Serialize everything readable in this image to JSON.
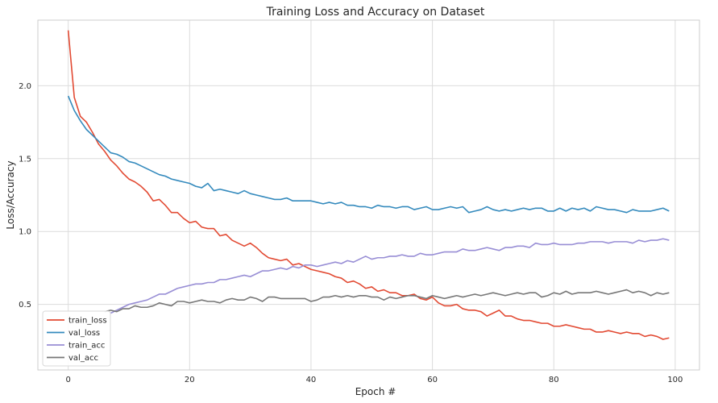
{
  "chart_data": {
    "type": "line",
    "title": "Training Loss and Accuracy on Dataset",
    "xlabel": "Epoch #",
    "ylabel": "Loss/Accuracy",
    "xlim": [
      -5,
      104
    ],
    "ylim": [
      0.05,
      2.45
    ],
    "xticks": [
      0,
      20,
      40,
      60,
      80,
      100
    ],
    "yticks": [
      0.5,
      1.0,
      1.5,
      2.0
    ],
    "xtick_labels": [
      "0",
      "20",
      "40",
      "60",
      "80",
      "100"
    ],
    "ytick_labels": [
      "0.5",
      "1.0",
      "1.5",
      "2.0"
    ],
    "grid": true,
    "legend": "bottom-left",
    "colors": {
      "train_loss": "#e24a33",
      "val_loss": "#348abd",
      "train_acc": "#988ed5",
      "val_acc": "#777777"
    },
    "series": [
      {
        "name": "train_loss",
        "color": "#e24a33",
        "values": [
          2.38,
          1.92,
          1.79,
          1.75,
          1.68,
          1.6,
          1.55,
          1.49,
          1.45,
          1.4,
          1.36,
          1.34,
          1.31,
          1.27,
          1.21,
          1.22,
          1.18,
          1.13,
          1.13,
          1.09,
          1.06,
          1.07,
          1.03,
          1.02,
          1.02,
          0.97,
          0.98,
          0.94,
          0.92,
          0.9,
          0.92,
          0.89,
          0.85,
          0.82,
          0.81,
          0.8,
          0.81,
          0.77,
          0.78,
          0.76,
          0.74,
          0.73,
          0.72,
          0.71,
          0.69,
          0.68,
          0.65,
          0.66,
          0.64,
          0.61,
          0.62,
          0.59,
          0.6,
          0.58,
          0.58,
          0.56,
          0.56,
          0.57,
          0.54,
          0.53,
          0.55,
          0.51,
          0.49,
          0.49,
          0.5,
          0.47,
          0.46,
          0.46,
          0.45,
          0.42,
          0.44,
          0.46,
          0.42,
          0.42,
          0.4,
          0.39,
          0.39,
          0.38,
          0.37,
          0.37,
          0.35,
          0.35,
          0.36,
          0.35,
          0.34,
          0.33,
          0.33,
          0.31,
          0.31,
          0.32,
          0.31,
          0.3,
          0.31,
          0.3,
          0.3,
          0.28,
          0.29,
          0.28,
          0.26,
          0.27
        ]
      },
      {
        "name": "val_loss",
        "color": "#348abd",
        "values": [
          1.93,
          1.83,
          1.76,
          1.7,
          1.66,
          1.62,
          1.58,
          1.54,
          1.53,
          1.51,
          1.48,
          1.47,
          1.45,
          1.43,
          1.41,
          1.39,
          1.38,
          1.36,
          1.35,
          1.34,
          1.33,
          1.31,
          1.3,
          1.33,
          1.28,
          1.29,
          1.28,
          1.27,
          1.26,
          1.28,
          1.26,
          1.25,
          1.24,
          1.23,
          1.22,
          1.22,
          1.23,
          1.21,
          1.21,
          1.21,
          1.21,
          1.2,
          1.19,
          1.2,
          1.19,
          1.2,
          1.18,
          1.18,
          1.17,
          1.17,
          1.16,
          1.18,
          1.17,
          1.17,
          1.16,
          1.17,
          1.17,
          1.15,
          1.16,
          1.17,
          1.15,
          1.15,
          1.16,
          1.17,
          1.16,
          1.17,
          1.13,
          1.14,
          1.15,
          1.17,
          1.15,
          1.14,
          1.15,
          1.14,
          1.15,
          1.16,
          1.15,
          1.16,
          1.16,
          1.14,
          1.14,
          1.16,
          1.14,
          1.16,
          1.15,
          1.16,
          1.14,
          1.17,
          1.16,
          1.15,
          1.15,
          1.14,
          1.13,
          1.15,
          1.14,
          1.14,
          1.14,
          1.15,
          1.16,
          1.14
        ]
      },
      {
        "name": "train_acc",
        "color": "#988ed5",
        "values": [
          null,
          null,
          null,
          null,
          null,
          null,
          null,
          0.44,
          0.46,
          0.48,
          0.5,
          0.51,
          0.52,
          0.53,
          0.55,
          0.57,
          0.57,
          0.59,
          0.61,
          0.62,
          0.63,
          0.64,
          0.64,
          0.65,
          0.65,
          0.67,
          0.67,
          0.68,
          0.69,
          0.7,
          0.69,
          0.71,
          0.73,
          0.73,
          0.74,
          0.75,
          0.74,
          0.76,
          0.75,
          0.77,
          0.77,
          0.76,
          0.77,
          0.78,
          0.79,
          0.78,
          0.8,
          0.79,
          0.81,
          0.83,
          0.81,
          0.82,
          0.82,
          0.83,
          0.83,
          0.84,
          0.83,
          0.83,
          0.85,
          0.84,
          0.84,
          0.85,
          0.86,
          0.86,
          0.86,
          0.88,
          0.87,
          0.87,
          0.88,
          0.89,
          0.88,
          0.87,
          0.89,
          0.89,
          0.9,
          0.9,
          0.89,
          0.92,
          0.91,
          0.91,
          0.92,
          0.91,
          0.91,
          0.91,
          0.92,
          0.92,
          0.93,
          0.93,
          0.93,
          0.92,
          0.93,
          0.93,
          0.93,
          0.92,
          0.94,
          0.93,
          0.94,
          0.94,
          0.95,
          0.94
        ]
      },
      {
        "name": "val_acc",
        "color": "#777777",
        "values": [
          null,
          null,
          null,
          null,
          null,
          null,
          0.45,
          0.46,
          0.45,
          0.47,
          0.47,
          0.49,
          0.48,
          0.48,
          0.49,
          0.51,
          0.5,
          0.49,
          0.52,
          0.52,
          0.51,
          0.52,
          0.53,
          0.52,
          0.52,
          0.51,
          0.53,
          0.54,
          0.53,
          0.53,
          0.55,
          0.54,
          0.52,
          0.55,
          0.55,
          0.54,
          0.54,
          0.54,
          0.54,
          0.54,
          0.52,
          0.53,
          0.55,
          0.55,
          0.56,
          0.55,
          0.56,
          0.55,
          0.56,
          0.56,
          0.55,
          0.55,
          0.53,
          0.55,
          0.54,
          0.55,
          0.56,
          0.56,
          0.55,
          0.54,
          0.56,
          0.55,
          0.54,
          0.55,
          0.56,
          0.55,
          0.56,
          0.57,
          0.56,
          0.57,
          0.58,
          0.57,
          0.56,
          0.57,
          0.58,
          0.57,
          0.58,
          0.58,
          0.55,
          0.56,
          0.58,
          0.57,
          0.59,
          0.57,
          0.58,
          0.58,
          0.58,
          0.59,
          0.58,
          0.57,
          0.58,
          0.59,
          0.6,
          0.58,
          0.59,
          0.58,
          0.56,
          0.58,
          0.57,
          0.58
        ]
      }
    ]
  }
}
